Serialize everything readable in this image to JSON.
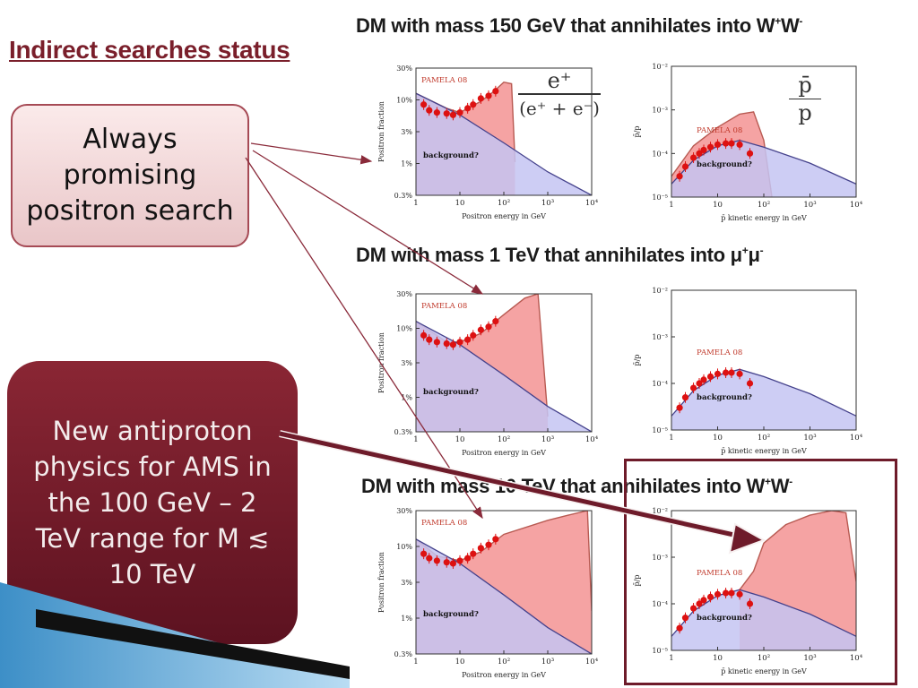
{
  "slide": {
    "title": "Indirect searches status",
    "box1_text": "Always promising positron search",
    "box2_text": "New antiproton physics for AMS in the 100 GeV – 2 TeV range for M ≲ 10 TeV"
  },
  "rows": [
    {
      "title_main": "DM with mass 150 GeV that annihilates into W",
      "title_sup1": "+",
      "title_mid": "W",
      "title_sup2": "-"
    },
    {
      "title_main": "DM with mass 1 TeV that annihilates into μ",
      "title_sup1": "+",
      "title_mid": "μ",
      "title_sup2": "-"
    },
    {
      "title_main": "DM with mass 10 TeV that annihilates into W",
      "title_sup1": "+",
      "title_mid": "W",
      "title_sup2": "-"
    }
  ],
  "fractions": {
    "positron_num": "e⁺",
    "positron_den": "(e⁺ + e⁻)",
    "antiproton_num": "p̄",
    "antiproton_den": "p"
  },
  "colors": {
    "dm_fill": "#f5a3a3",
    "dm_line": "#b85a52",
    "bg_fill": "#c4c4f2",
    "bg_line": "#45428c",
    "data": "#dd1111",
    "accent_dark": "#6e1b2a"
  },
  "chart_data": [
    {
      "type": "area",
      "panel": "positron",
      "row": 1,
      "x_scale": "log",
      "y_scale": "log",
      "xlim": [
        1,
        10000
      ],
      "ylim": [
        0.003,
        0.3
      ],
      "yticks": [
        "0.3%",
        "1%",
        "3%",
        "10%",
        "30%"
      ],
      "xticks": [
        "1",
        "10",
        "10²",
        "10³",
        "10⁴"
      ],
      "ylabel": "Positron fraction",
      "xlabel": "Positron energy in GeV",
      "legend": "PAMELA 08",
      "annotation": "background?",
      "series": [
        {
          "name": "background",
          "x": [
            1,
            10,
            100,
            1000,
            10000
          ],
          "y": [
            0.12,
            0.055,
            0.02,
            0.007,
            0.003
          ]
        },
        {
          "name": "DM + background",
          "x": [
            1,
            5,
            10,
            30,
            60,
            100,
            150,
            180
          ],
          "y": [
            0.12,
            0.07,
            0.06,
            0.09,
            0.13,
            0.18,
            0.17,
            0.01
          ]
        },
        {
          "name": "PAMELA 08",
          "x": [
            1.5,
            2,
            3,
            5,
            7,
            10,
            15,
            20,
            30,
            45,
            65
          ],
          "y": [
            0.08,
            0.065,
            0.06,
            0.058,
            0.055,
            0.06,
            0.07,
            0.08,
            0.1,
            0.11,
            0.13
          ]
        }
      ]
    },
    {
      "type": "area",
      "panel": "antiproton",
      "row": 1,
      "x_scale": "log",
      "y_scale": "log",
      "xlim": [
        1,
        10000
      ],
      "ylim": [
        1e-05,
        0.01
      ],
      "yticks": [
        "10⁻⁵",
        "10⁻⁴",
        "10⁻³",
        "10⁻²"
      ],
      "xticks": [
        "1",
        "10",
        "10²",
        "10³",
        "10⁴"
      ],
      "ylabel": "p̄/p",
      "xlabel": "p̄ kinetic energy in GeV",
      "legend": "PAMELA 08",
      "annotation": "background?",
      "series": [
        {
          "name": "background",
          "x": [
            1,
            3,
            10,
            30,
            100,
            1000,
            10000
          ],
          "y": [
            2e-05,
            7e-05,
            0.00015,
            0.0002,
            0.00014,
            6e-05,
            2e-05
          ]
        },
        {
          "name": "DM + background",
          "x": [
            1,
            3,
            10,
            30,
            60,
            100,
            150
          ],
          "y": [
            3e-05,
            0.00015,
            0.0004,
            0.0008,
            0.0009,
            0.0002,
            1e-05
          ]
        },
        {
          "name": "PAMELA 08",
          "x": [
            1.5,
            2,
            3,
            4,
            5,
            7,
            10,
            15,
            20,
            30,
            50
          ],
          "y": [
            3e-05,
            5e-05,
            8e-05,
            0.0001,
            0.00012,
            0.00014,
            0.00016,
            0.00017,
            0.00017,
            0.00016,
            0.0001
          ]
        }
      ]
    },
    {
      "type": "area",
      "panel": "positron",
      "row": 2,
      "x_scale": "log",
      "y_scale": "log",
      "xlim": [
        1,
        10000
      ],
      "ylim": [
        0.003,
        0.3
      ],
      "yticks": [
        "0.3%",
        "1%",
        "3%",
        "10%",
        "30%"
      ],
      "xticks": [
        "1",
        "10",
        "10²",
        "10³",
        "10⁴"
      ],
      "ylabel": "Positron fraction",
      "xlabel": "Positron energy in GeV",
      "legend": "PAMELA 08",
      "annotation": "background?",
      "series": [
        {
          "name": "background",
          "x": [
            1,
            10,
            100,
            1000,
            10000
          ],
          "y": [
            0.12,
            0.055,
            0.02,
            0.007,
            0.003
          ]
        },
        {
          "name": "DM + background",
          "x": [
            1,
            5,
            10,
            30,
            100,
            300,
            600,
            1000
          ],
          "y": [
            0.12,
            0.06,
            0.06,
            0.08,
            0.15,
            0.26,
            0.3,
            0.005
          ]
        },
        {
          "name": "PAMELA 08",
          "x": [
            1.5,
            2,
            3,
            5,
            7,
            10,
            15,
            20,
            30,
            45,
            65
          ],
          "y": [
            0.075,
            0.065,
            0.06,
            0.057,
            0.055,
            0.06,
            0.065,
            0.075,
            0.09,
            0.1,
            0.12
          ]
        }
      ]
    },
    {
      "type": "area",
      "panel": "antiproton",
      "row": 2,
      "x_scale": "log",
      "y_scale": "log",
      "xlim": [
        1,
        10000
      ],
      "ylim": [
        1e-05,
        0.01
      ],
      "yticks": [
        "10⁻⁵",
        "10⁻⁴",
        "10⁻³",
        "10⁻²"
      ],
      "xticks": [
        "1",
        "10",
        "10²",
        "10³",
        "10⁴"
      ],
      "ylabel": "p̄/p",
      "xlabel": "p̄ kinetic energy in GeV",
      "legend": "PAMELA 08",
      "annotation": "background?",
      "series": [
        {
          "name": "background",
          "x": [
            1,
            3,
            10,
            30,
            100,
            1000,
            10000
          ],
          "y": [
            2e-05,
            7e-05,
            0.00015,
            0.0002,
            0.00014,
            6e-05,
            2e-05
          ]
        },
        {
          "name": "PAMELA 08",
          "x": [
            1.5,
            2,
            3,
            4,
            5,
            7,
            10,
            15,
            20,
            30,
            50
          ],
          "y": [
            3e-05,
            5e-05,
            8e-05,
            0.0001,
            0.00012,
            0.00014,
            0.00016,
            0.00017,
            0.00017,
            0.00016,
            0.0001
          ]
        }
      ]
    },
    {
      "type": "area",
      "panel": "positron",
      "row": 3,
      "x_scale": "log",
      "y_scale": "log",
      "xlim": [
        1,
        10000
      ],
      "ylim": [
        0.003,
        0.3
      ],
      "yticks": [
        "0.3%",
        "1%",
        "3%",
        "10%",
        "30%"
      ],
      "xticks": [
        "1",
        "10",
        "10²",
        "10³",
        "10⁴"
      ],
      "ylabel": "Positron fraction",
      "xlabel": "Positron energy in GeV",
      "legend": "PAMELA 08",
      "annotation": "background?",
      "series": [
        {
          "name": "background",
          "x": [
            1,
            10,
            100,
            1000,
            10000
          ],
          "y": [
            0.12,
            0.055,
            0.02,
            0.007,
            0.003
          ]
        },
        {
          "name": "DM + background",
          "x": [
            1,
            3,
            10,
            30,
            100,
            1000,
            3000,
            8000,
            10000
          ],
          "y": [
            0.12,
            0.07,
            0.06,
            0.08,
            0.14,
            0.22,
            0.26,
            0.3,
            0.012
          ]
        },
        {
          "name": "PAMELA 08",
          "x": [
            1.5,
            2,
            3,
            5,
            7,
            10,
            15,
            20,
            30,
            45,
            65
          ],
          "y": [
            0.075,
            0.065,
            0.06,
            0.057,
            0.055,
            0.06,
            0.065,
            0.075,
            0.09,
            0.1,
            0.12
          ]
        }
      ]
    },
    {
      "type": "area",
      "panel": "antiproton",
      "row": 3,
      "x_scale": "log",
      "y_scale": "log",
      "xlim": [
        1,
        10000
      ],
      "ylim": [
        1e-05,
        0.01
      ],
      "yticks": [
        "10⁻⁵",
        "10⁻⁴",
        "10⁻³",
        "10⁻²"
      ],
      "xticks": [
        "1",
        "10",
        "10²",
        "10³",
        "10⁴"
      ],
      "ylabel": "p̄/p",
      "xlabel": "p̄ kinetic energy in GeV",
      "legend": "PAMELA 08",
      "annotation": "background?",
      "series": [
        {
          "name": "background",
          "x": [
            1,
            3,
            10,
            30,
            100,
            1000,
            10000
          ],
          "y": [
            2e-05,
            7e-05,
            0.00015,
            0.0002,
            0.00014,
            6e-05,
            2e-05
          ]
        },
        {
          "name": "DM + background",
          "x": [
            30,
            60,
            100,
            300,
            1000,
            3000,
            6000,
            10000
          ],
          "y": [
            0.0002,
            0.0005,
            0.002,
            0.005,
            0.008,
            0.01,
            0.009,
            0.0003
          ]
        },
        {
          "name": "PAMELA 08",
          "x": [
            1.5,
            2,
            3,
            4,
            5,
            7,
            10,
            15,
            20,
            30,
            50
          ],
          "y": [
            3e-05,
            5e-05,
            8e-05,
            0.0001,
            0.00012,
            0.00014,
            0.00016,
            0.00017,
            0.00017,
            0.00016,
            0.0001
          ]
        }
      ]
    }
  ]
}
